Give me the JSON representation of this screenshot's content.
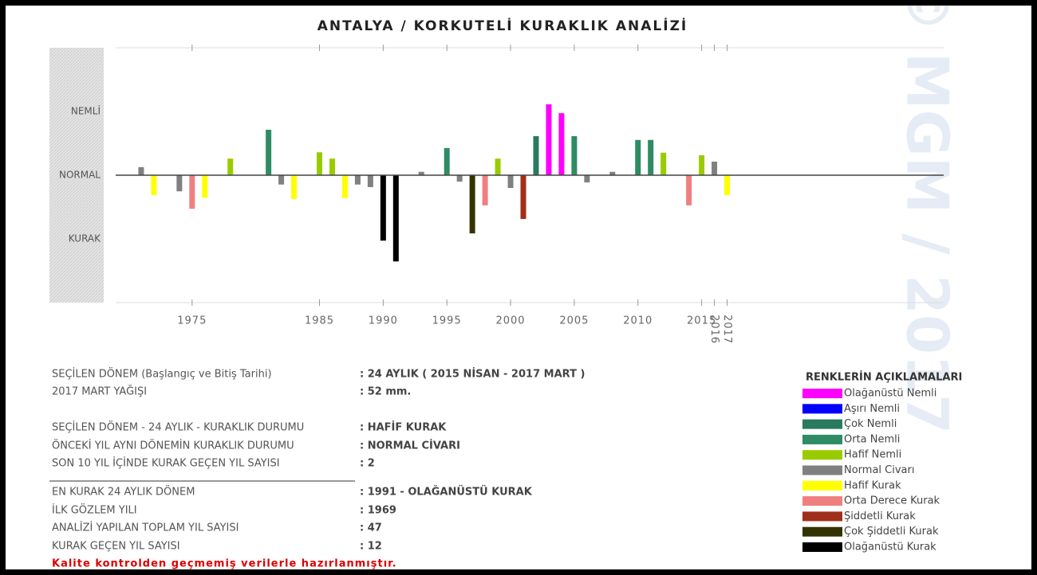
{
  "chart_data": {
    "type": "bar",
    "title": "ANTALYA / KORKUTELİ KURAKLIK ANALİZİ",
    "watermark": "© MGM / 2017",
    "x": [
      1971,
      1972,
      1974,
      1975,
      1976,
      1978,
      1981,
      1982,
      1983,
      1985,
      1986,
      1987,
      1988,
      1989,
      1990,
      1991,
      1993,
      1995,
      1996,
      1997,
      1998,
      1999,
      2000,
      2001,
      2002,
      2003,
      2004,
      2005,
      2006,
      2008,
      2010,
      2011,
      2012,
      2014,
      2015,
      2016,
      2017
    ],
    "values": [
      0.19,
      -0.47,
      -0.38,
      -0.79,
      -0.53,
      0.39,
      1.07,
      -0.22,
      -0.56,
      0.54,
      0.39,
      -0.54,
      -0.22,
      -0.28,
      -1.54,
      -2.03,
      0.08,
      0.64,
      -0.15,
      -1.37,
      -0.71,
      0.39,
      -0.3,
      -1.03,
      0.92,
      1.67,
      1.46,
      0.92,
      -0.17,
      0.08,
      0.83,
      0.83,
      0.53,
      -0.71,
      0.47,
      0.32,
      -0.47
    ],
    "colors": [
      "#808080",
      "#ffff00",
      "#808080",
      "#f08080",
      "#ffff00",
      "#99cc00",
      "#2e8b64",
      "#808080",
      "#ffff00",
      "#99cc00",
      "#99cc00",
      "#ffff00",
      "#808080",
      "#808080",
      "#000000",
      "#000000",
      "#808080",
      "#2e8b64",
      "#808080",
      "#333300",
      "#f08080",
      "#99cc00",
      "#808080",
      "#a0301a",
      "#2a7a60",
      "#ff00ff",
      "#ff00ff",
      "#2e8b64",
      "#808080",
      "#808080",
      "#2e8b64",
      "#2e8b64",
      "#99cc00",
      "#f08080",
      "#99cc00",
      "#808080",
      "#ffff00"
    ],
    "xlim": [
      1969,
      2034
    ],
    "xticks": [
      1975,
      1985,
      1990,
      1995,
      2000,
      2005,
      2010,
      2015,
      2016,
      2017
    ],
    "ylim": [
      -3,
      3
    ],
    "yticks": [
      {
        "value": 1.5,
        "label": "NEMLİ"
      },
      {
        "value": 0,
        "label": "NORMAL"
      },
      {
        "value": -1.5,
        "label": "KURAK"
      }
    ],
    "legend": {
      "title": "RENKLERİN AÇIKLAMALARI",
      "items": [
        {
          "name": "Olağanüstü Nemli",
          "color": "#ff00ff"
        },
        {
          "name": "Aşırı Nemli",
          "color": "#0000ff"
        },
        {
          "name": "Çok Nemli",
          "color": "#2a7a60"
        },
        {
          "name": "Orta Nemli",
          "color": "#2e8b64"
        },
        {
          "name": "Hafif Nemli",
          "color": "#99cc00"
        },
        {
          "name": "Normal Civarı",
          "color": "#808080"
        },
        {
          "name": "Hafif Kurak",
          "color": "#ffff00"
        },
        {
          "name": "Orta Derece Kurak",
          "color": "#f08080"
        },
        {
          "name": "Şiddetli Kurak",
          "color": "#a0301a"
        },
        {
          "name": "Çok Şiddetli Kurak",
          "color": "#333300"
        },
        {
          "name": "Olağanüstü Kurak",
          "color": "#000000"
        }
      ]
    }
  },
  "info": [
    {
      "label": "SEÇİLEN DÖNEM (Başlangıç ve Bitiş Tarihi)",
      "value": ": 24 AYLIK ( 2015 NİSAN - 2017 MART )"
    },
    {
      "label": "2017 MART YAĞIŞI",
      "value": ": 52 mm."
    },
    {
      "label": "SEÇİLEN DÖNEM - 24 AYLIK - KURAKLIK DURUMU",
      "value": ": HAFİF KURAK"
    },
    {
      "label": "ÖNCEKİ YIL AYNI DÖNEMİN KURAKLIK DURUMU",
      "value": ": NORMAL CİVARI"
    },
    {
      "label": "SON 10 YIL İÇİNDE KURAK GEÇEN YIL SAYISI",
      "value": ": 2"
    },
    {
      "label": "EN KURAK 24 AYLIK DÖNEM",
      "value": ": 1991 - OLAĞANÜSTÜ KURAK"
    },
    {
      "label": "İLK GÖZLEM YILI",
      "value": ": 1969"
    },
    {
      "label": "ANALİZİ YAPILAN TOPLAM YIL SAYISI",
      "value": ": 47"
    },
    {
      "label": "KURAK GEÇEN YIL SAYISI",
      "value": ": 12"
    }
  ],
  "footer": "Kalite kontrolden geçmemiş verilerle hazırlanmıştır."
}
